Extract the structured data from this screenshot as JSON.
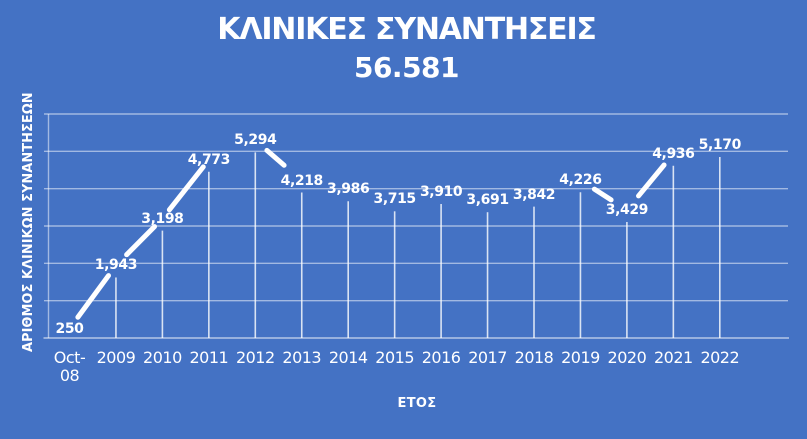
{
  "chart_data": {
    "type": "line",
    "title": "ΚΛΙΝΙΚΕΣ ΣΥΝΑΝΤΗΣΕΙΣ",
    "subtitle_total": "56.581",
    "xlabel": "ΕΤΟΣ",
    "ylabel": "ΑΡΙΘΜΟΣ ΚΛΙΝΙΚΩΝ ΣΥΝΑΝΤΗΣΕΩΝ",
    "categories": [
      "Oct-08",
      "2009",
      "2010",
      "2011",
      "2012",
      "2013",
      "2014",
      "2015",
      "2016",
      "2017",
      "2018",
      "2019",
      "2020",
      "2021",
      "2022"
    ],
    "values": [
      250,
      1943,
      3198,
      4773,
      5294,
      4218,
      3986,
      3715,
      3910,
      3691,
      3842,
      4226,
      3429,
      4936,
      5170
    ],
    "value_labels": [
      "250",
      "1,943",
      "3,198",
      "4,773",
      "5,294",
      "4,218",
      "3,986",
      "3,715",
      "3,910",
      "3,691",
      "3,842",
      "4,226",
      "3,429",
      "4,936",
      "5,170"
    ],
    "total": 56581,
    "ylim": [
      0,
      6000
    ],
    "y_gridline_step": 1000,
    "grid": "horizontal",
    "legend": "none",
    "drop_lines": true,
    "line_visible_segments": [
      [
        0,
        1
      ],
      [
        1,
        2
      ],
      [
        2,
        3
      ],
      [
        4,
        5
      ],
      [
        11,
        12
      ],
      [
        12,
        13
      ]
    ],
    "colors": {
      "background": "#4472C4",
      "text": "#FFFFFF",
      "line": "#FFFFFF",
      "gridline": "rgba(255,255,255,0.50)",
      "dropline": "rgba(255,255,255,0.80)",
      "axis": "rgba(255,255,255,0.60)"
    }
  }
}
